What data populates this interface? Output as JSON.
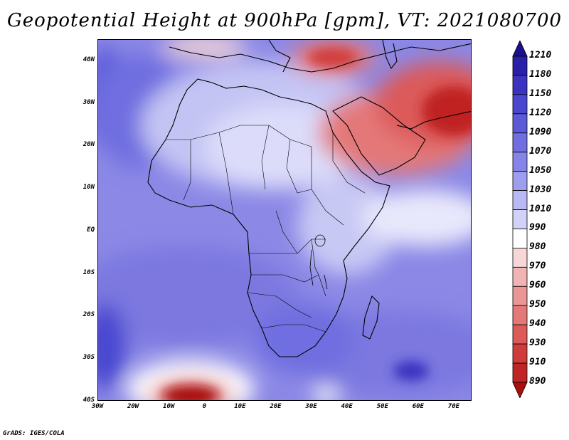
{
  "title": "Geopotential Height at 900hPa [gpm], VT: 2021080700",
  "credit": "GrADS: IGES/COLA",
  "map": {
    "lon_range": [
      -30,
      75
    ],
    "lat_range": [
      -40,
      45
    ],
    "lat_ticks": [
      {
        "value": 40,
        "label": "40N"
      },
      {
        "value": 30,
        "label": "30N"
      },
      {
        "value": 20,
        "label": "20N"
      },
      {
        "value": 10,
        "label": "10N"
      },
      {
        "value": 0,
        "label": "EQ"
      },
      {
        "value": -10,
        "label": "10S"
      },
      {
        "value": -20,
        "label": "20S"
      },
      {
        "value": -30,
        "label": "30S"
      },
      {
        "value": -40,
        "label": "40S"
      }
    ],
    "lon_ticks": [
      {
        "value": -30,
        "label": "30W"
      },
      {
        "value": -20,
        "label": "20W"
      },
      {
        "value": -10,
        "label": "10W"
      },
      {
        "value": 0,
        "label": "0"
      },
      {
        "value": 10,
        "label": "10E"
      },
      {
        "value": 20,
        "label": "20E"
      },
      {
        "value": 30,
        "label": "30E"
      },
      {
        "value": 40,
        "label": "40E"
      },
      {
        "value": 50,
        "label": "50E"
      },
      {
        "value": 60,
        "label": "60E"
      },
      {
        "value": 70,
        "label": "70E"
      }
    ]
  },
  "colorbar": {
    "levels": [
      "1210",
      "1180",
      "1150",
      "1120",
      "1090",
      "1070",
      "1050",
      "1030",
      "1010",
      "990",
      "980",
      "970",
      "960",
      "950",
      "940",
      "930",
      "910",
      "890"
    ],
    "colors": [
      "#1a0f8c",
      "#2a1fa8",
      "#3a33c0",
      "#4a46d0",
      "#5c5ad8",
      "#706ee0",
      "#8684e8",
      "#9e9eee",
      "#b8b8f4",
      "#d2d2f8",
      "#ffffff",
      "#f6d6d6",
      "#f0b4b4",
      "#ea9696",
      "#e47878",
      "#dc5a5a",
      "#d03c3c",
      "#c02424",
      "#a81010"
    ]
  }
}
